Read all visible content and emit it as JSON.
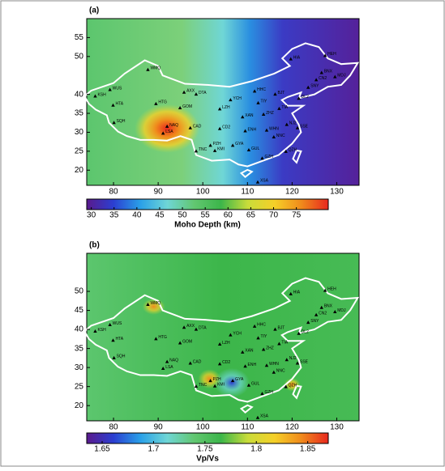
{
  "colormap": [
    "#5a1a8c",
    "#2b3fd1",
    "#2aa0e8",
    "#6fd6d6",
    "#62c771",
    "#3cb64a",
    "#c9dc3a",
    "#f5d028",
    "#f08a1c",
    "#e8281e"
  ],
  "panels": [
    {
      "label": "(a)",
      "colorbar_label": "Moho Depth (km)",
      "xlim": [
        74,
        135
      ],
      "ylim": [
        16,
        60
      ],
      "xticks": [
        80,
        90,
        100,
        110,
        120,
        130
      ],
      "yticks": [
        20,
        25,
        30,
        35,
        40,
        50,
        55
      ],
      "clim": [
        29,
        82
      ],
      "cticks": [
        30,
        35,
        40,
        45,
        50,
        55,
        60,
        65,
        70,
        75
      ]
    },
    {
      "label": "(b)",
      "colorbar_label": "Vp/Vs",
      "xlim": [
        74,
        135
      ],
      "ylim": [
        16,
        60
      ],
      "xticks": [
        80,
        90,
        100,
        110,
        120,
        130
      ],
      "yticks": [
        20,
        25,
        30,
        35,
        40,
        45,
        50
      ],
      "clim": [
        1.635,
        1.87
      ],
      "cticks": [
        1.65,
        1.7,
        1.75,
        1.8,
        1.85
      ]
    }
  ],
  "stations": [
    {
      "code": "KSH",
      "lon": 75.9,
      "lat": 39.5
    },
    {
      "code": "WUS",
      "lon": 79.2,
      "lat": 41.2
    },
    {
      "code": "HTA",
      "lon": 79.9,
      "lat": 37.1
    },
    {
      "code": "SQH",
      "lon": 80.1,
      "lat": 32.5
    },
    {
      "code": "WMQ",
      "lon": 87.7,
      "lat": 46.5
    },
    {
      "code": "HTG",
      "lon": 89.5,
      "lat": 37.5
    },
    {
      "code": "GOM",
      "lon": 94.9,
      "lat": 36.4
    },
    {
      "code": "NAQ",
      "lon": 92.0,
      "lat": 31.5
    },
    {
      "code": "LSA",
      "lon": 91.1,
      "lat": 29.7
    },
    {
      "code": "CAD",
      "lon": 97.2,
      "lat": 31.1
    },
    {
      "code": "AXX",
      "lon": 95.8,
      "lat": 40.5
    },
    {
      "code": "DTA",
      "lon": 98.5,
      "lat": 40.0
    },
    {
      "code": "YCH",
      "lon": 106.2,
      "lat": 38.5
    },
    {
      "code": "LZH",
      "lon": 103.8,
      "lat": 36.1
    },
    {
      "code": "CD2",
      "lon": 103.8,
      "lat": 30.9
    },
    {
      "code": "PZH",
      "lon": 101.7,
      "lat": 26.5
    },
    {
      "code": "KMI",
      "lon": 102.7,
      "lat": 25.1
    },
    {
      "code": "TNC",
      "lon": 98.5,
      "lat": 25.0
    },
    {
      "code": "GYA",
      "lon": 106.7,
      "lat": 26.5
    },
    {
      "code": "ENH",
      "lon": 109.5,
      "lat": 30.3
    },
    {
      "code": "XAN",
      "lon": 108.9,
      "lat": 34.0
    },
    {
      "code": "HHC",
      "lon": 111.6,
      "lat": 40.8
    },
    {
      "code": "BJT",
      "lon": 116.2,
      "lat": 40.0
    },
    {
      "code": "TIY",
      "lon": 112.4,
      "lat": 37.7
    },
    {
      "code": "ZHZ",
      "lon": 113.6,
      "lat": 34.7
    },
    {
      "code": "NNC",
      "lon": 115.9,
      "lat": 28.7
    },
    {
      "code": "GZH",
      "lon": 113.3,
      "lat": 23.1
    },
    {
      "code": "GUL",
      "lon": 110.3,
      "lat": 25.3
    },
    {
      "code": "WHN",
      "lon": 114.3,
      "lat": 30.5
    },
    {
      "code": "NJ2",
      "lon": 118.8,
      "lat": 32.0
    },
    {
      "code": "SSE",
      "lon": 121.2,
      "lat": 31.1
    },
    {
      "code": "QZH",
      "lon": 118.6,
      "lat": 24.9
    },
    {
      "code": "XSA",
      "lon": 112.3,
      "lat": 16.8
    },
    {
      "code": "HIA",
      "lon": 119.7,
      "lat": 49.3
    },
    {
      "code": "HEH",
      "lon": 127.4,
      "lat": 50.2
    },
    {
      "code": "MDJ",
      "lon": 129.6,
      "lat": 44.6
    },
    {
      "code": "BNX",
      "lon": 126.6,
      "lat": 45.7
    },
    {
      "code": "CN2",
      "lon": 125.4,
      "lat": 43.8
    },
    {
      "code": "SNY",
      "lon": 123.6,
      "lat": 41.8
    },
    {
      "code": "DL2",
      "lon": 121.5,
      "lat": 38.9
    },
    {
      "code": "TIA",
      "lon": 117.1,
      "lat": 36.2
    }
  ]
}
